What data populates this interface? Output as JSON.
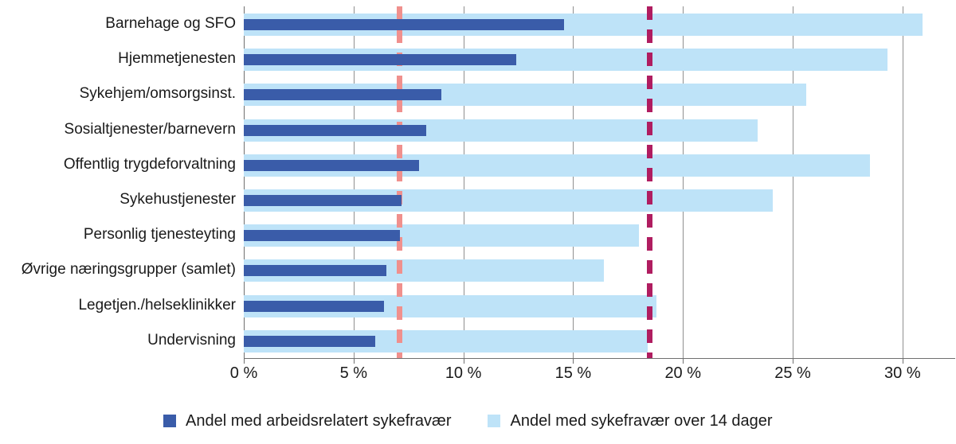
{
  "chart_data": {
    "type": "bar",
    "orientation": "horizontal",
    "title": "",
    "xlabel": "",
    "ylabel": "",
    "grid": "vertical",
    "legend_position": "bottom",
    "categories": [
      "Barnehage og SFO",
      "Hjemmetjenesten",
      "Sykehjem/omsorgsinst.",
      "Sosialtjenester/barnevern",
      "Offentlig trygdeforvaltning",
      "Sykehustjenester",
      "Personlig tjenesteyting",
      "Øvrige næringsgrupper (samlet)",
      "Legetjen./helseklinikker",
      "Undervisning"
    ],
    "series": [
      {
        "name": "Andel med arbeidsrelatert sykefravær",
        "color": "#3A5CA9",
        "values": [
          14.6,
          12.4,
          9.0,
          8.3,
          8.0,
          7.2,
          7.1,
          6.5,
          6.4,
          6.0
        ]
      },
      {
        "name": "Andel med sykefravær over 14 dager",
        "color": "#BEE3F8",
        "values": [
          30.9,
          29.3,
          25.6,
          23.4,
          28.5,
          24.1,
          18.0,
          16.4,
          18.8,
          18.4
        ]
      }
    ],
    "reference_lines": [
      {
        "name": "salmon-dashed-line",
        "value": 7.1,
        "color": "#F0908D",
        "style": "dashed"
      },
      {
        "name": "magenta-dashed-line",
        "value": 18.5,
        "color": "#B01D60",
        "style": "dashed"
      }
    ],
    "x_axis": {
      "tick_values": [
        0,
        5,
        10,
        15,
        20,
        25,
        30
      ],
      "tick_labels": [
        "0 %",
        "5 %",
        "10 %",
        "15 %",
        "20 %",
        "25 %",
        "30 %"
      ],
      "min": 0,
      "max": 32.4,
      "unit": "%"
    }
  },
  "colors": {
    "gridline": "#8f8f8f",
    "axis": "#6f6f6f",
    "text": "#1a1a1a",
    "background": "#ffffff"
  }
}
